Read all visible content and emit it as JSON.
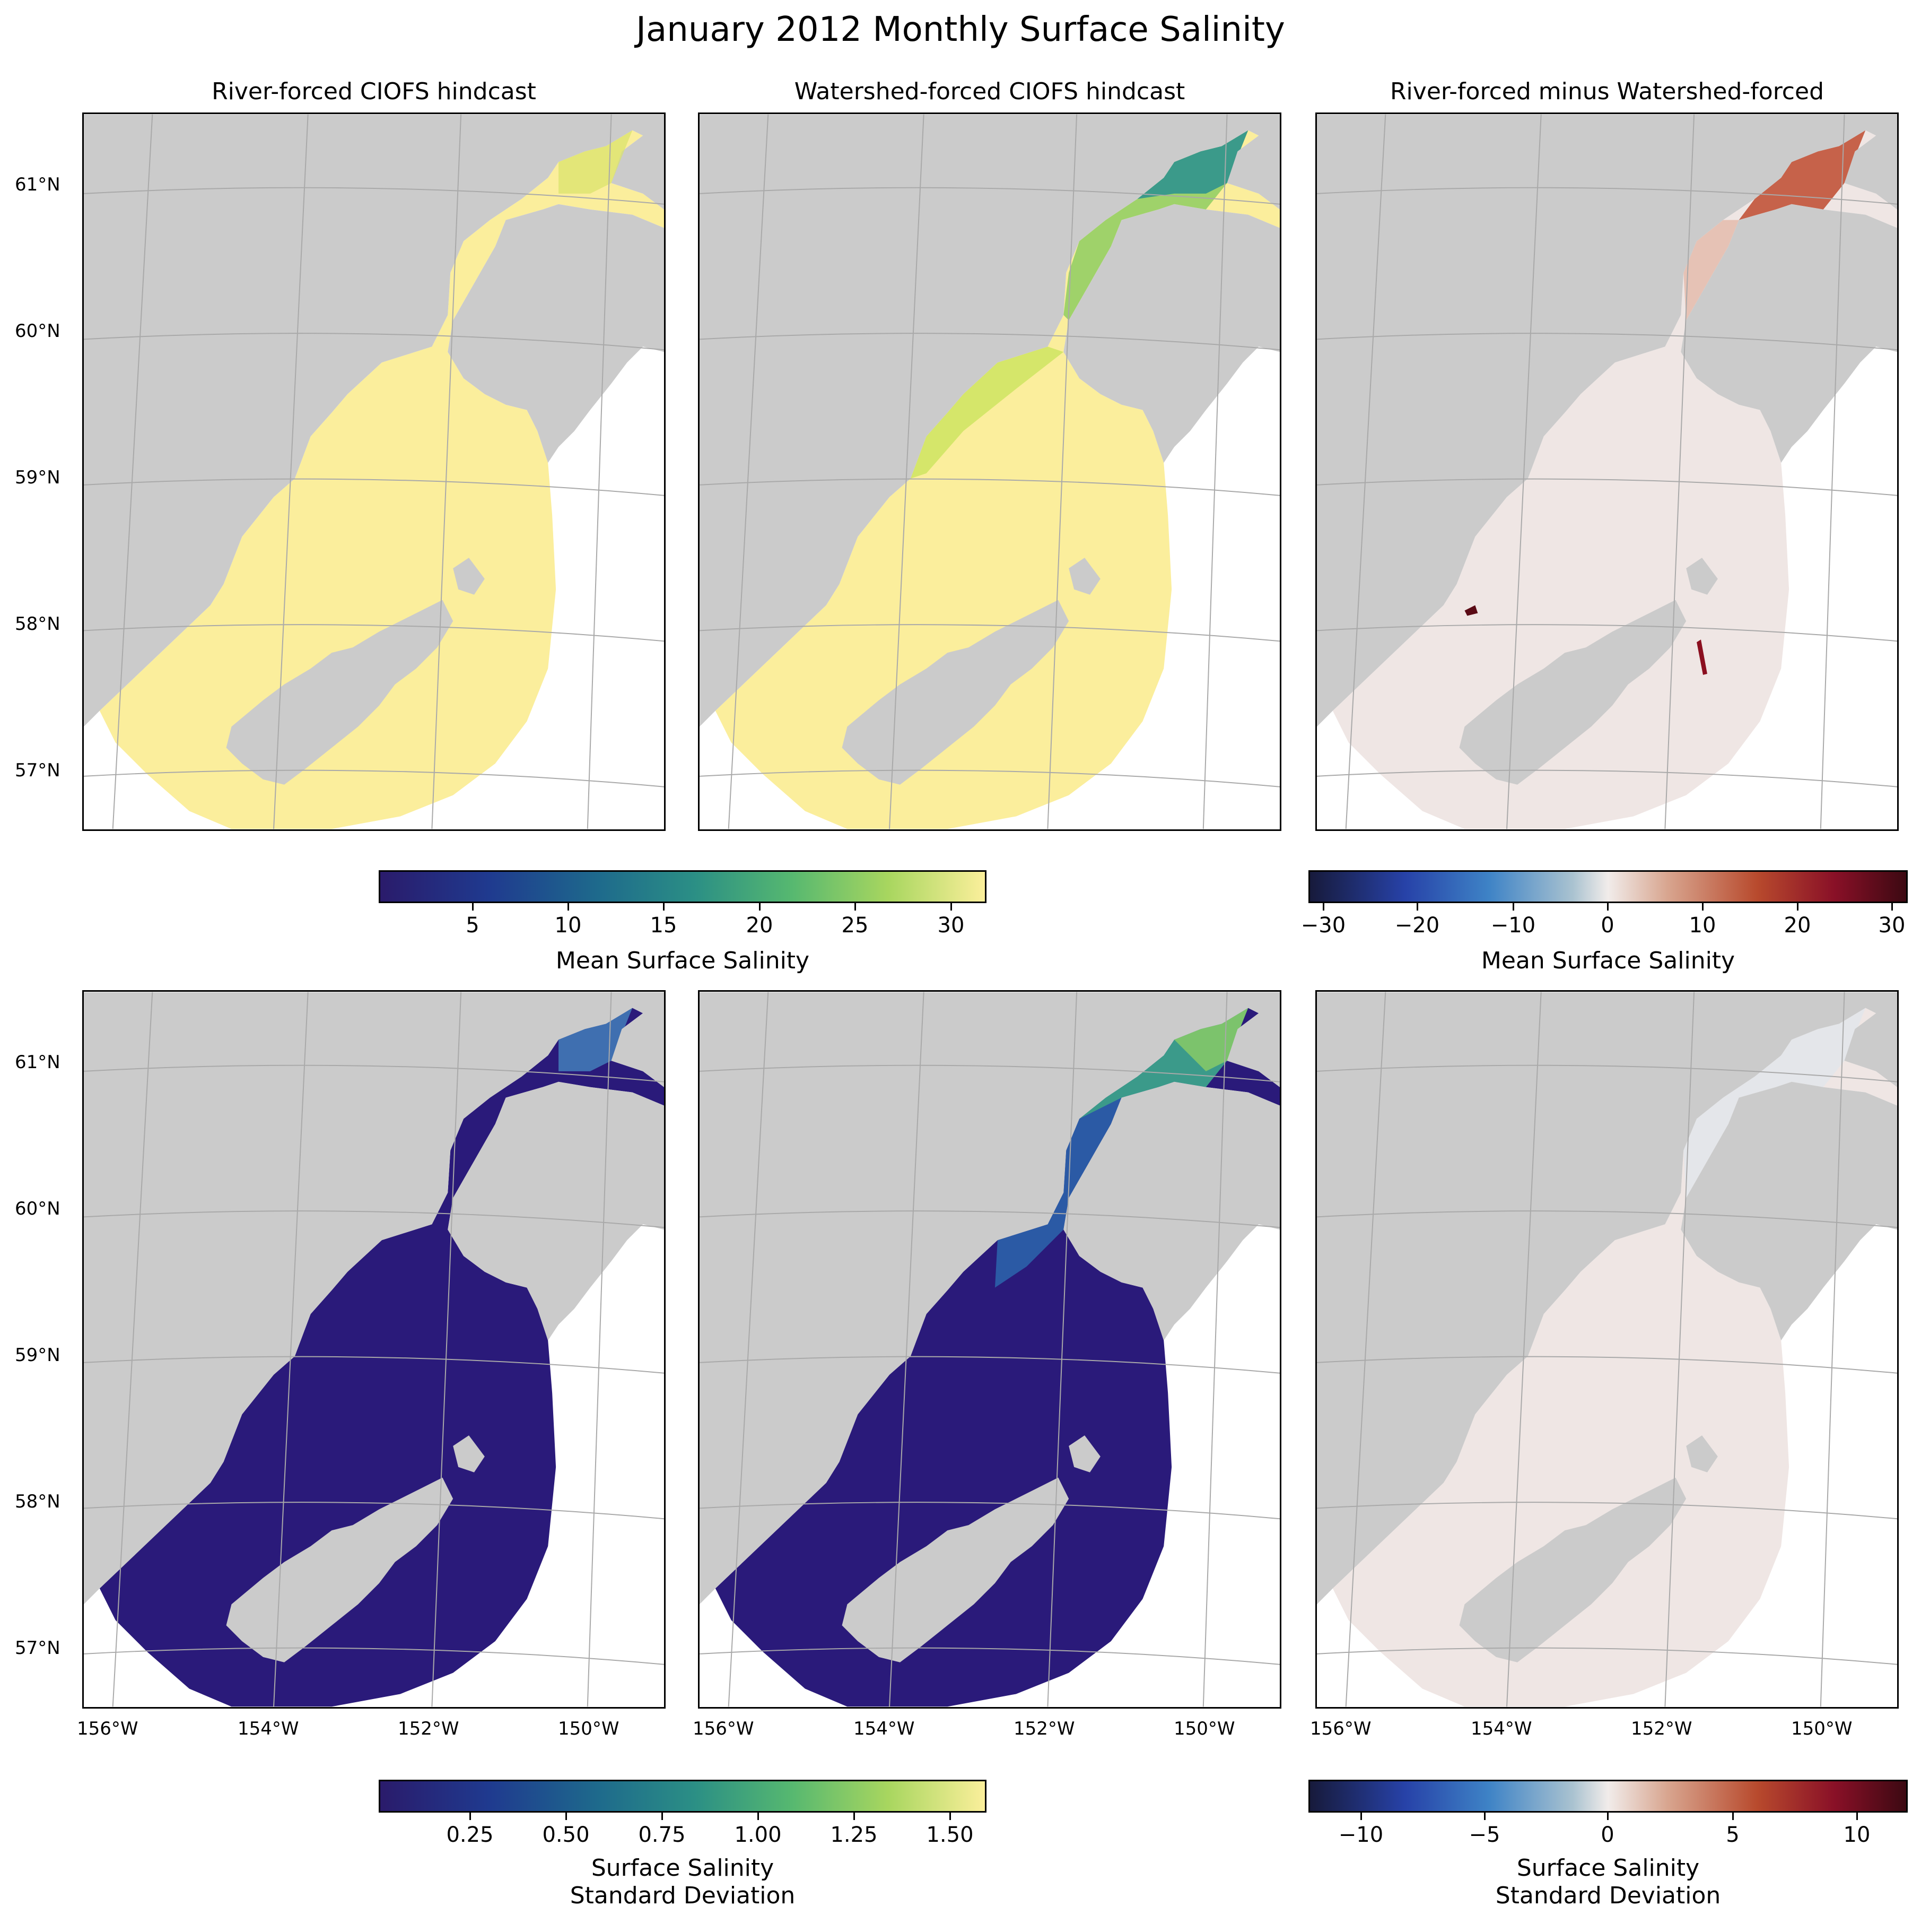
{
  "figure_title": "January 2012 Monthly Surface Salinity",
  "panels": {
    "p1": {
      "title": "River-forced CIOFS hindcast"
    },
    "p2": {
      "title": "Watershed-forced CIOFS hindcast"
    },
    "p3": {
      "title": "River-forced minus Watershed-forced"
    }
  },
  "lat_labels": [
    "61°N",
    "60°N",
    "59°N",
    "58°N",
    "57°N"
  ],
  "lon_labels": [
    "156°W",
    "154°W",
    "152°W",
    "150°W"
  ],
  "colorbars": {
    "mean_salinity": {
      "label": "Mean Surface Salinity",
      "ticks": [
        "5",
        "10",
        "15",
        "20",
        "25",
        "30"
      ],
      "colormap": "haline"
    },
    "mean_diff": {
      "label": "Mean Surface Salinity",
      "ticks": [
        "−30",
        "−20",
        "−10",
        "0",
        "10",
        "20",
        "30"
      ],
      "colormap": "balance"
    },
    "std_salinity": {
      "label_line1": "Surface Salinity",
      "label_line2": "Standard Deviation",
      "ticks": [
        "0.25",
        "0.50",
        "0.75",
        "1.00",
        "1.25",
        "1.50"
      ],
      "colormap": "haline"
    },
    "std_diff": {
      "label_line1": "Surface Salinity",
      "label_line2": "Standard Deviation",
      "ticks": [
        "−10",
        "−5",
        "0",
        "5",
        "10"
      ],
      "colormap": "balance"
    }
  },
  "colors": {
    "land": "#cbcbcb",
    "gridline": "#a9a9a9",
    "salty_water": "#fbee9c",
    "low_std": "#2a1a7a",
    "diff_neutral": "#efe6e4",
    "diff_positive": "#8b0f1f"
  }
}
